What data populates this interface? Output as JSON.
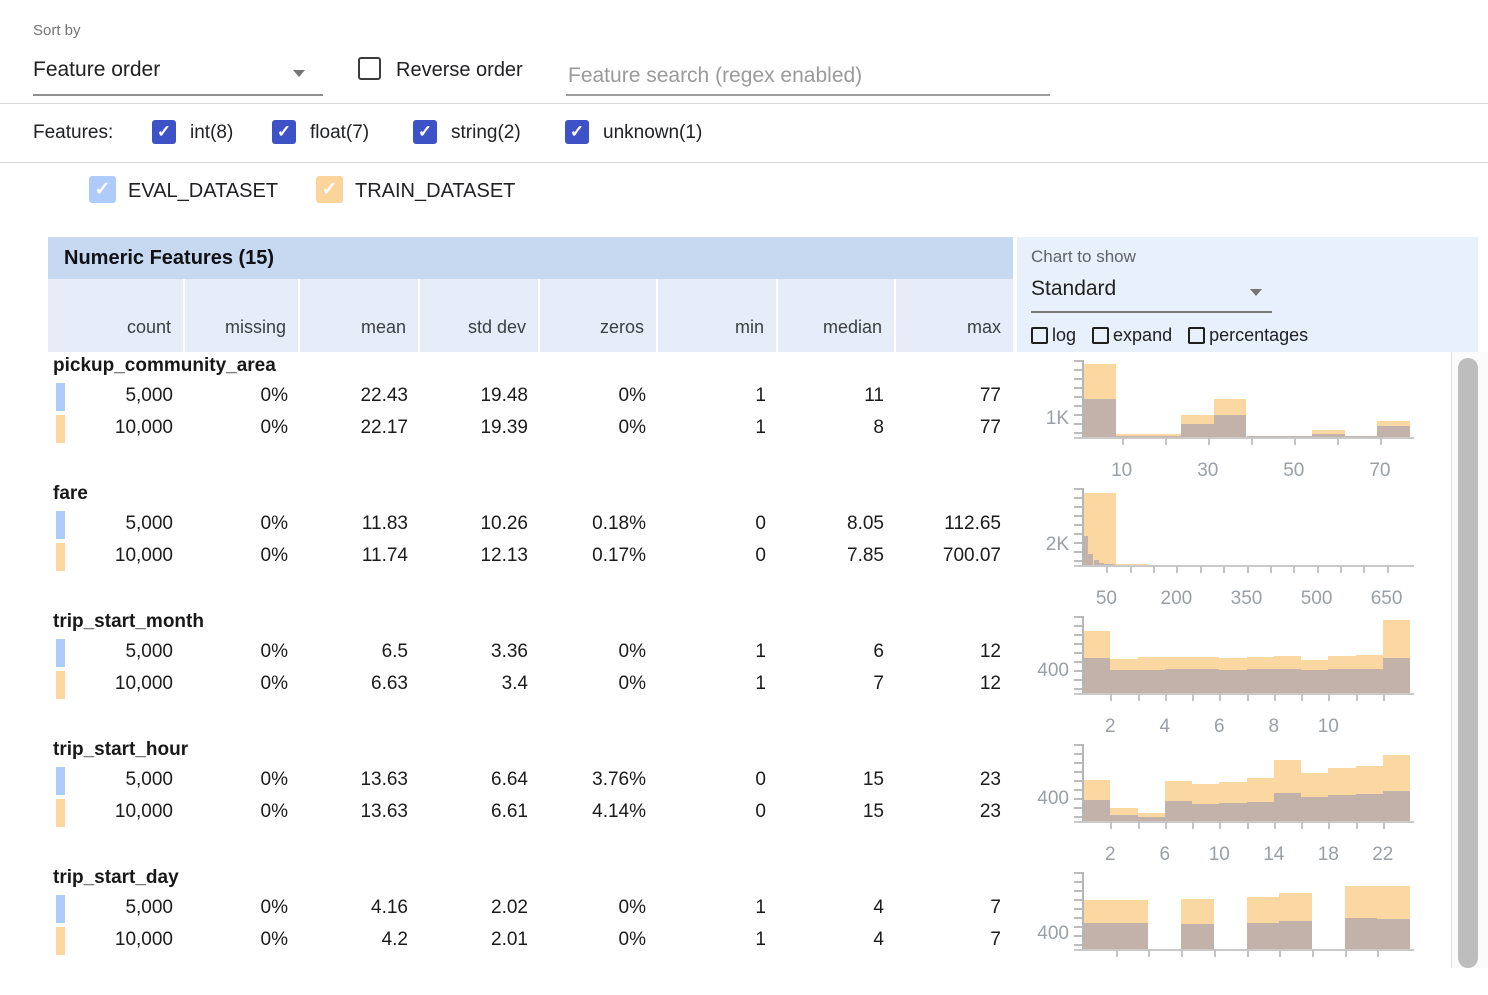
{
  "colors": {
    "accent_indigo": "#3d52c6",
    "eval_swatch": "#aecbfa",
    "train_swatch": "#fbd8a2",
    "train_bar": "#fbd8a2",
    "eval_overlap_bar": "#c3b2a9",
    "table_title_band": "#c7d9f0",
    "column_header_bg": "#e7edf8",
    "chart_panel_bg": "#e8f0fb"
  },
  "controls": {
    "sort_by_label": "Sort by",
    "sort_by_value": "Feature order",
    "reverse_order_label": "Reverse order",
    "search_placeholder": "Feature search (regex enabled)",
    "features_label": "Features:",
    "type_filters": [
      {
        "label": "int(8)",
        "checked": true
      },
      {
        "label": "float(7)",
        "checked": true
      },
      {
        "label": "string(2)",
        "checked": true
      },
      {
        "label": "unknown(1)",
        "checked": true
      }
    ],
    "datasets": [
      {
        "name": "EVAL_DATASET",
        "color": "#aecbfa",
        "checked": true
      },
      {
        "name": "TRAIN_DATASET",
        "color": "#fbd49c",
        "checked": true
      }
    ]
  },
  "table": {
    "title": "Numeric Features (15)",
    "columns": [
      "count",
      "missing",
      "mean",
      "std dev",
      "zeros",
      "min",
      "median",
      "max"
    ],
    "chart_panel": {
      "label": "Chart to show",
      "selected": "Standard",
      "checkboxes": [
        "log",
        "expand",
        "percentages"
      ]
    },
    "features": [
      {
        "name": "pickup_community_area",
        "rows": [
          {
            "dataset": "EVAL_DATASET",
            "values": [
              "5,000",
              "0%",
              "22.43",
              "19.48",
              "0%",
              "1",
              "11",
              "77"
            ]
          },
          {
            "dataset": "TRAIN_DATASET",
            "values": [
              "10,000",
              "0%",
              "22.17",
              "19.39",
              "0%",
              "1",
              "8",
              "77"
            ]
          }
        ]
      },
      {
        "name": "fare",
        "rows": [
          {
            "dataset": "EVAL_DATASET",
            "values": [
              "5,000",
              "0%",
              "11.83",
              "10.26",
              "0.18%",
              "0",
              "8.05",
              "112.65"
            ]
          },
          {
            "dataset": "TRAIN_DATASET",
            "values": [
              "10,000",
              "0%",
              "11.74",
              "12.13",
              "0.17%",
              "0",
              "7.85",
              "700.07"
            ]
          }
        ]
      },
      {
        "name": "trip_start_month",
        "rows": [
          {
            "dataset": "EVAL_DATASET",
            "values": [
              "5,000",
              "0%",
              "6.5",
              "3.36",
              "0%",
              "1",
              "6",
              "12"
            ]
          },
          {
            "dataset": "TRAIN_DATASET",
            "values": [
              "10,000",
              "0%",
              "6.63",
              "3.4",
              "0%",
              "1",
              "7",
              "12"
            ]
          }
        ]
      },
      {
        "name": "trip_start_hour",
        "rows": [
          {
            "dataset": "EVAL_DATASET",
            "values": [
              "5,000",
              "0%",
              "13.63",
              "6.64",
              "3.76%",
              "0",
              "15",
              "23"
            ]
          },
          {
            "dataset": "TRAIN_DATASET",
            "values": [
              "10,000",
              "0%",
              "13.63",
              "6.61",
              "4.14%",
              "0",
              "15",
              "23"
            ]
          }
        ]
      },
      {
        "name": "trip_start_day",
        "rows": [
          {
            "dataset": "EVAL_DATASET",
            "values": [
              "5,000",
              "0%",
              "4.16",
              "2.02",
              "0%",
              "1",
              "4",
              "7"
            ]
          },
          {
            "dataset": "TRAIN_DATASET",
            "values": [
              "10,000",
              "0%",
              "4.2",
              "2.01",
              "0%",
              "1",
              "4",
              "7"
            ]
          }
        ]
      }
    ]
  },
  "chart_data": [
    {
      "type": "bar",
      "feature": "pickup_community_area",
      "legend_position": "none",
      "grid": false,
      "ylabel": "1K",
      "ylabel_value": 1000,
      "ymax": 4200,
      "x_domain": [
        1,
        77
      ],
      "x_ticks": [
        10,
        20,
        30,
        40,
        50,
        60,
        70
      ],
      "x_tick_labels": [
        10,
        30,
        50,
        70
      ],
      "series": [
        {
          "name": "TRAIN_DATASET",
          "color": "#fbd8a2",
          "edges": [
            1,
            8.6,
            16.2,
            23.8,
            31.4,
            39,
            46.6,
            54.2,
            61.8,
            69.4,
            77
          ],
          "counts": [
            4000,
            140,
            170,
            1200,
            2070,
            80,
            80,
            380,
            80,
            870
          ]
        },
        {
          "name": "EVAL_DATASET",
          "color": "#c3b2a9",
          "edges": [
            1,
            8.6,
            16.2,
            23.8,
            31.4,
            39,
            46.6,
            54.2,
            61.8,
            69.4,
            77
          ],
          "counts": [
            2100,
            60,
            80,
            700,
            1200,
            40,
            40,
            180,
            40,
            600
          ]
        }
      ]
    },
    {
      "type": "bar",
      "feature": "fare",
      "legend_position": "none",
      "grid": false,
      "ylabel": "2K",
      "ylabel_value": 2000,
      "ymax": 7700,
      "x_domain": [
        0,
        700
      ],
      "x_ticks": [
        50,
        100,
        150,
        200,
        250,
        300,
        350,
        400,
        450,
        500,
        550,
        600,
        650
      ],
      "x_tick_labels": [
        50,
        200,
        350,
        500,
        650
      ],
      "series": [
        {
          "name": "TRAIN_DATASET",
          "color": "#fbd8a2",
          "edges": [
            0,
            70,
            140,
            210,
            280,
            350,
            420,
            490,
            560,
            630,
            700
          ],
          "counts": [
            7200,
            100,
            30,
            12,
            6,
            4,
            3,
            2,
            2,
            3
          ]
        },
        {
          "name": "EVAL_DATASET",
          "color": "#c3b2a9",
          "edges": [
            0,
            11.3,
            22.5,
            33.8,
            45.1,
            56.3,
            67.6,
            78.9,
            90.1,
            101.4,
            112.65
          ],
          "counts": [
            2900,
            1100,
            500,
            200,
            100,
            60,
            40,
            30,
            20,
            20
          ]
        }
      ]
    },
    {
      "type": "bar",
      "feature": "trip_start_month",
      "legend_position": "none",
      "grid": false,
      "ylabel": "400",
      "ylabel_value": 400,
      "ymax": 1420,
      "x_domain": [
        1,
        13
      ],
      "x_ticks": [
        2,
        3,
        4,
        5,
        6,
        7,
        8,
        9,
        10,
        11,
        12
      ],
      "x_tick_labels": [
        2,
        4,
        6,
        8,
        10
      ],
      "series": [
        {
          "name": "TRAIN_DATASET",
          "color": "#fbd8a2",
          "edges": [
            1,
            2,
            3,
            4,
            5,
            6,
            7,
            8,
            9,
            10,
            11,
            12,
            13
          ],
          "counts": [
            1150,
            620,
            660,
            670,
            660,
            650,
            660,
            690,
            610,
            690,
            710,
            1350
          ]
        },
        {
          "name": "EVAL_DATASET",
          "color": "#c3b2a9",
          "edges": [
            1,
            2,
            3,
            4,
            5,
            6,
            7,
            8,
            9,
            10,
            11,
            12,
            13
          ],
          "counts": [
            640,
            420,
            430,
            440,
            435,
            430,
            435,
            445,
            420,
            440,
            450,
            640
          ]
        }
      ]
    },
    {
      "type": "bar",
      "feature": "trip_start_hour",
      "legend_position": "none",
      "grid": false,
      "ylabel": "400",
      "ylabel_value": 400,
      "ymax": 1390,
      "x_domain": [
        0,
        24
      ],
      "x_ticks": [
        2,
        4,
        6,
        8,
        10,
        12,
        14,
        16,
        18,
        20,
        22
      ],
      "x_tick_labels": [
        2,
        6,
        10,
        14,
        18,
        22
      ],
      "series": [
        {
          "name": "TRAIN_DATASET",
          "color": "#fbd8a2",
          "edges": [
            0,
            2,
            4,
            6,
            8,
            10,
            12,
            14,
            16,
            18,
            20,
            22,
            24
          ],
          "counts": [
            735,
            230,
            140,
            720,
            665,
            700,
            770,
            1100,
            875,
            960,
            1000,
            1190
          ]
        },
        {
          "name": "EVAL_DATASET",
          "color": "#c3b2a9",
          "edges": [
            0,
            2,
            4,
            6,
            8,
            10,
            12,
            14,
            16,
            18,
            20,
            22,
            24
          ],
          "counts": [
            385,
            105,
            70,
            370,
            315,
            330,
            350,
            510,
            440,
            470,
            490,
            540
          ]
        }
      ]
    },
    {
      "type": "bar",
      "feature": "trip_start_day",
      "legend_position": "none",
      "grid": false,
      "ylabel": "400",
      "ylabel_value": 400,
      "ymax": 2000,
      "x_domain": [
        1,
        7
      ],
      "x_ticks": [
        1.6,
        2.2,
        2.8,
        3.4,
        4,
        4.6,
        5.2,
        5.8,
        6.4
      ],
      "x_tick_labels": [],
      "series": [
        {
          "name": "TRAIN_DATASET",
          "color": "#fbd8a2",
          "edges": [
            1,
            1.6,
            2.2,
            2.8,
            3.4,
            4,
            4.6,
            5.2,
            5.8,
            6.4,
            7
          ],
          "counts": [
            1280,
            1280,
            0,
            1300,
            0,
            1350,
            1450,
            0,
            1650,
            1640
          ]
        },
        {
          "name": "EVAL_DATASET",
          "color": "#c3b2a9",
          "edges": [
            1,
            1.6,
            2.2,
            2.8,
            3.4,
            4,
            4.6,
            5.2,
            5.8,
            6.4,
            7
          ],
          "counts": [
            675,
            670,
            0,
            640,
            0,
            680,
            720,
            0,
            800,
            790
          ]
        }
      ]
    }
  ]
}
